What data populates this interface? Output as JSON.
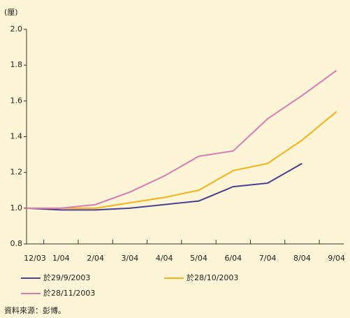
{
  "chart_data": {
    "type": "line",
    "unit_label": "(厘)",
    "categories": [
      "12/03",
      "1/04",
      "2/04",
      "3/04",
      "4/04",
      "5/04",
      "6/04",
      "7/04",
      "8/04",
      "9/04"
    ],
    "series": [
      {
        "name": "於29/9/2003",
        "color": "#4b3f92",
        "values": [
          1.0,
          0.99,
          0.99,
          1.0,
          1.02,
          1.04,
          1.12,
          1.14,
          1.25,
          null
        ]
      },
      {
        "name": "於28/10/2003",
        "color": "#f5b21b",
        "values": [
          1.0,
          1.0,
          1.0,
          1.03,
          1.06,
          1.1,
          1.21,
          1.25,
          1.38,
          1.54
        ]
      },
      {
        "name": "於28/11/2003",
        "color": "#d97bb5",
        "values": [
          1.0,
          1.0,
          1.02,
          1.09,
          1.18,
          1.29,
          1.32,
          1.5,
          1.63,
          1.77
        ]
      }
    ],
    "ylim": [
      0.8,
      2.0
    ],
    "yticks": [
      0.8,
      {
        "value": 1.0,
        "label": "1.0"
      },
      1.2,
      1.4,
      1.6,
      1.8,
      {
        "value": 2.0,
        "label": "2.0"
      }
    ],
    "source": "資料來源：彭博。"
  }
}
